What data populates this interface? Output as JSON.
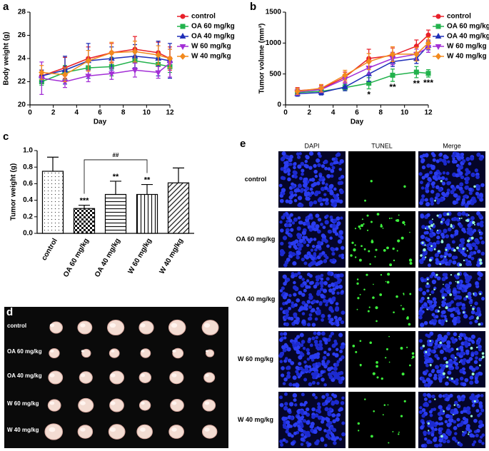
{
  "panel_labels": [
    "a",
    "b",
    "c",
    "d",
    "e"
  ],
  "chart_data": [
    {
      "type": "line",
      "xlabel": "Day",
      "ylabel": "Body weight (g)",
      "x": [
        1,
        3,
        5,
        7,
        9,
        11,
        12
      ],
      "xlim": [
        0,
        12
      ],
      "xticks": [
        0,
        2,
        4,
        6,
        8,
        10,
        12
      ],
      "ylim": [
        20,
        28
      ],
      "yticks": [
        20,
        22,
        24,
        26,
        28
      ],
      "series": [
        {
          "name": "control",
          "color": "#e8202a",
          "marker": "circle",
          "values": [
            22.5,
            23.2,
            24.0,
            24.5,
            24.8,
            24.5,
            24.0
          ],
          "errors": [
            0.5,
            0.9,
            1.0,
            0.8,
            1.1,
            0.9,
            1.0
          ]
        },
        {
          "name": "OA 60 mg/kg",
          "color": "#22b24c",
          "marker": "square",
          "values": [
            22.0,
            22.8,
            23.2,
            23.3,
            23.8,
            23.5,
            23.3
          ],
          "errors": [
            0.3,
            0.6,
            0.7,
            0.8,
            0.7,
            0.6,
            0.5
          ]
        },
        {
          "name": "OA 40 mg/kg",
          "color": "#1f2fb8",
          "marker": "triangle-up",
          "values": [
            22.5,
            23.0,
            23.8,
            24.0,
            24.2,
            24.0,
            23.8
          ],
          "errors": [
            0.5,
            1.2,
            1.5,
            1.0,
            1.0,
            1.5,
            1.5
          ]
        },
        {
          "name": "W 60 mg/kg",
          "color": "#a32fd6",
          "marker": "triangle-down",
          "values": [
            22.3,
            22.0,
            22.5,
            22.7,
            23.0,
            22.8,
            23.6
          ],
          "errors": [
            1.4,
            0.5,
            0.5,
            0.5,
            0.6,
            0.5,
            1.2
          ]
        },
        {
          "name": "W 40 mg/kg",
          "color": "#f28a1e",
          "marker": "diamond",
          "values": [
            22.8,
            22.6,
            23.8,
            24.5,
            24.6,
            24.3,
            24.0
          ],
          "errors": [
            0.6,
            0.6,
            0.9,
            0.9,
            0.9,
            0.8,
            0.8
          ]
        }
      ]
    },
    {
      "type": "line",
      "xlabel": "Day",
      "ylabel": "Tumor volume (mm³)",
      "x": [
        1,
        3,
        5,
        7,
        9,
        11,
        12
      ],
      "xlim": [
        0,
        12
      ],
      "xticks": [
        0,
        2,
        4,
        6,
        8,
        10,
        12
      ],
      "ylim": [
        0,
        1500
      ],
      "yticks": [
        0,
        500,
        1000,
        1500
      ],
      "series": [
        {
          "name": "control",
          "color": "#e8202a",
          "marker": "circle",
          "values": [
            230,
            260,
            450,
            750,
            800,
            950,
            1130
          ],
          "errors": [
            50,
            60,
            80,
            150,
            120,
            100,
            80
          ]
        },
        {
          "name": "OA 60 mg/kg",
          "color": "#22b24c",
          "marker": "square",
          "values": [
            200,
            220,
            280,
            350,
            480,
            530,
            510
          ],
          "errors": [
            40,
            40,
            50,
            90,
            100,
            90,
            60
          ]
        },
        {
          "name": "OA 40 mg/kg",
          "color": "#1f2fb8",
          "marker": "triangle-up",
          "values": [
            180,
            200,
            290,
            500,
            700,
            750,
            960
          ],
          "errors": [
            40,
            40,
            60,
            120,
            80,
            80,
            70
          ]
        },
        {
          "name": "W 60 mg/kg",
          "color": "#a32fd6",
          "marker": "triangle-down",
          "values": [
            210,
            250,
            420,
            600,
            750,
            820,
            930
          ],
          "errors": [
            50,
            50,
            70,
            100,
            100,
            80,
            80
          ]
        },
        {
          "name": "W 40 mg/kg",
          "color": "#f28a1e",
          "marker": "diamond",
          "values": [
            220,
            270,
            480,
            700,
            820,
            820,
            1000
          ],
          "errors": [
            50,
            60,
            80,
            130,
            120,
            110,
            90
          ]
        }
      ],
      "annotations": [
        {
          "series": "OA 60 mg/kg",
          "x": 7,
          "text": "*"
        },
        {
          "series": "OA 60 mg/kg",
          "x": 9,
          "text": "**"
        },
        {
          "series": "OA 60 mg/kg",
          "x": 11,
          "text": "**"
        },
        {
          "series": "OA 60 mg/kg",
          "x": 12,
          "text": "***"
        }
      ]
    },
    {
      "type": "bar",
      "ylabel": "Tumor weight (g)",
      "categories": [
        "control",
        "OA 60 mg/kg",
        "OA 40 mg/kg",
        "W 60 mg/kg",
        "W 40 mg/kg"
      ],
      "values": [
        0.75,
        0.3,
        0.47,
        0.47,
        0.61
      ],
      "errors": [
        0.17,
        0.04,
        0.16,
        0.12,
        0.18
      ],
      "patterns": [
        "dots",
        "checker",
        "hlines",
        "vlines",
        "diagonal"
      ],
      "ylim": [
        0,
        1
      ],
      "yticks": [
        {
          "value": 0,
          "label": "0.0"
        },
        0.2,
        0.4,
        0.6,
        0.8,
        {
          "value": 1,
          "label": "1.0"
        }
      ],
      "annotations": [
        {
          "category": "OA 60 mg/kg",
          "text": "***"
        },
        {
          "category": "OA 40 mg/kg",
          "text": "**"
        },
        {
          "category": "W 60 mg/kg",
          "text": "**"
        }
      ],
      "brackets": [
        {
          "from": "OA 60 mg/kg",
          "to": "W 60 mg/kg",
          "text": "##"
        }
      ]
    }
  ],
  "photo": {
    "row_labels": [
      "control",
      "OA 60 mg/kg",
      "OA 40 mg/kg",
      "W 60 mg/kg",
      "W 40 mg/kg"
    ]
  },
  "tunel": {
    "columns": [
      "DAPI",
      "TUNEL",
      "Merge"
    ],
    "row_labels": [
      "control",
      "OA 60 mg/kg",
      "OA 40 mg/kg",
      "W 60 mg/kg",
      "W 40 mg/kg"
    ]
  }
}
